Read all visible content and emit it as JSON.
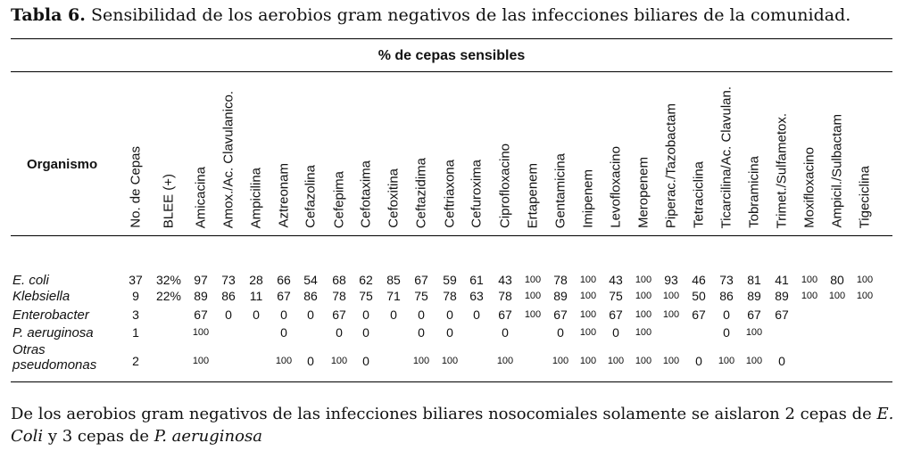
{
  "table": {
    "caption_bold": "Tabla 6.",
    "caption_text": " Sensibilidad de los aerobios gram negativos de las infecciones biliares de la comunidad.",
    "group_header": "% de cepas sensibles",
    "row_header": "Organismo",
    "columns": [
      "No. de Cepas",
      "BLEE (+)",
      "Amicacina",
      "Amox./Ac. Clavulanico.",
      "Ampicilina",
      "Aztreonam",
      "Cefazolina",
      "Cefepima",
      "Cefotaxima",
      "Cefoxitina",
      "Ceftazidima",
      "Ceftriaxona",
      "Cefuroxima",
      "Ciproﬂoxacino",
      "Ertapenem",
      "Gentamicina",
      "Imipenem",
      "Levoﬂoxacino",
      "Meropenem",
      "Piperac./Tazobactam",
      "Tetraciclina",
      "Ticarcilina/Ac. Clavulan.",
      "Tobramicina",
      "Trimet./Sulfametox.",
      "Moxiﬂoxacino",
      "Ampicil./Sulbactam",
      "Tigeciclina"
    ],
    "rows": [
      {
        "organism": "E. coli",
        "cells": [
          "37",
          "32%",
          "97",
          "73",
          "28",
          "66",
          "54",
          "68",
          "62",
          "85",
          "67",
          "59",
          "61",
          "43",
          "100",
          "78",
          "100",
          "43",
          "100",
          "93",
          "46",
          "73",
          "81",
          "41",
          "100",
          "80",
          "100"
        ]
      },
      {
        "organism": "Klebsiella",
        "cells": [
          "9",
          "22%",
          "89",
          "86",
          "11",
          "67",
          "86",
          "78",
          "75",
          "71",
          "75",
          "78",
          "63",
          "78",
          "100",
          "89",
          "100",
          "75",
          "100",
          "100",
          "50",
          "86",
          "89",
          "89",
          "100",
          "100",
          "100"
        ]
      },
      {
        "organism": "Enterobacter",
        "cells": [
          "3",
          "",
          "67",
          "0",
          "0",
          "0",
          "0",
          "67",
          "0",
          "0",
          "0",
          "0",
          "0",
          "67",
          "100",
          "67",
          "100",
          "67",
          "100",
          "100",
          "67",
          "0",
          "67",
          "67",
          "",
          "",
          ""
        ]
      },
      {
        "organism": "P. aeruginosa",
        "cells": [
          "1",
          "",
          "100",
          "",
          "",
          "0",
          "",
          "0",
          "0",
          "",
          "0",
          "0",
          "",
          "0",
          "",
          "0",
          "100",
          "0",
          "100",
          "",
          "",
          "0",
          "100",
          "",
          "",
          "",
          ""
        ]
      },
      {
        "organism": "Otras pseudomonas",
        "organism_line1": "Otras",
        "organism_line2": "pseudomonas",
        "cells": [
          "2",
          "",
          "100",
          "",
          "",
          "100",
          "0",
          "100",
          "0",
          "",
          "100",
          "100",
          "",
          "100",
          "",
          "100",
          "100",
          "100",
          "100",
          "100",
          "0",
          "100",
          "100",
          "0",
          "",
          "",
          ""
        ]
      }
    ]
  },
  "footnote": {
    "text1": "De los aerobios gram negativos de las infecciones biliares nosocomiales solamente se aislaron 2 cepas de ",
    "italic1": "E. Coli",
    "text2": " y 3 cepas de ",
    "italic2": "P. aeruginosa"
  }
}
